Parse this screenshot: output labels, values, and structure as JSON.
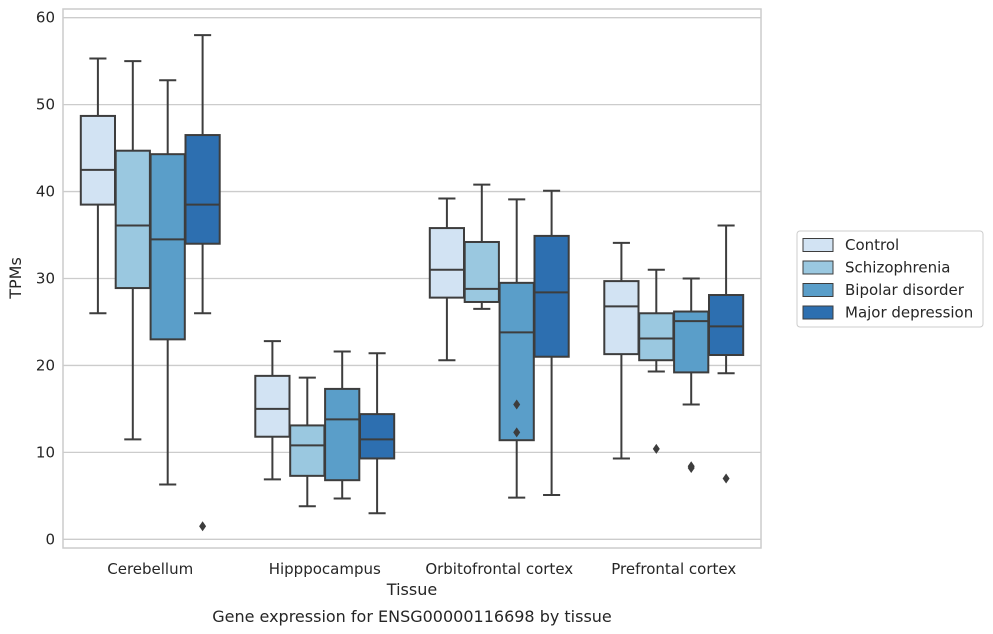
{
  "caption": "Gene expression for ENSG00000116698 by tissue",
  "chart_data": {
    "type": "box",
    "xlabel": "Tissue",
    "ylabel": "TPMs",
    "ylim": [
      -1,
      61
    ],
    "yticks": [
      0,
      10,
      20,
      30,
      40,
      50,
      60
    ],
    "grid": true,
    "legend_position": "right",
    "categories": [
      "Cerebellum",
      "Hipppocampus",
      "Orbitofrontal cortex",
      "Prefrontal cortex"
    ],
    "series": [
      {
        "name": "Control",
        "color": "#d2e3f3",
        "boxes": [
          {
            "whisker_low": 26.0,
            "q1": 38.5,
            "median": 42.5,
            "q3": 48.7,
            "whisker_high": 55.3,
            "outliers": []
          },
          {
            "whisker_low": 6.9,
            "q1": 11.8,
            "median": 15.0,
            "q3": 18.8,
            "whisker_high": 22.8,
            "outliers": []
          },
          {
            "whisker_low": 20.6,
            "q1": 27.8,
            "median": 31.0,
            "q3": 35.8,
            "whisker_high": 39.2,
            "outliers": []
          },
          {
            "whisker_low": 9.3,
            "q1": 21.3,
            "median": 26.8,
            "q3": 29.7,
            "whisker_high": 34.1,
            "outliers": []
          }
        ]
      },
      {
        "name": "Schizophrenia",
        "color": "#9ac8e0",
        "boxes": [
          {
            "whisker_low": 11.5,
            "q1": 28.9,
            "median": 36.1,
            "q3": 44.7,
            "whisker_high": 55.0,
            "outliers": []
          },
          {
            "whisker_low": 3.8,
            "q1": 7.3,
            "median": 10.8,
            "q3": 13.1,
            "whisker_high": 18.6,
            "outliers": []
          },
          {
            "whisker_low": 26.5,
            "q1": 27.3,
            "median": 28.8,
            "q3": 34.2,
            "whisker_high": 40.8,
            "outliers": []
          },
          {
            "whisker_low": 19.3,
            "q1": 20.6,
            "median": 23.1,
            "q3": 26.0,
            "whisker_high": 31.0,
            "outliers": [
              10.4
            ]
          }
        ]
      },
      {
        "name": "Bipolar disorder",
        "color": "#5a9ec9",
        "boxes": [
          {
            "whisker_low": 6.3,
            "q1": 23.0,
            "median": 34.5,
            "q3": 44.3,
            "whisker_high": 52.8,
            "outliers": []
          },
          {
            "whisker_low": 4.7,
            "q1": 6.8,
            "median": 13.8,
            "q3": 17.3,
            "whisker_high": 21.6,
            "outliers": []
          },
          {
            "whisker_low": 4.8,
            "q1": 11.4,
            "median": 23.8,
            "q3": 29.5,
            "whisker_high": 39.1,
            "outliers": [
              15.5,
              12.3
            ]
          },
          {
            "whisker_low": 15.5,
            "q1": 19.2,
            "median": 25.1,
            "q3": 26.2,
            "whisker_high": 30.0,
            "outliers": [
              8.4,
              8.2
            ]
          }
        ]
      },
      {
        "name": "Major depression",
        "color": "#2d6fb0",
        "boxes": [
          {
            "whisker_low": 26.0,
            "q1": 34.0,
            "median": 38.5,
            "q3": 46.5,
            "whisker_high": 58.0,
            "outliers": [
              1.5
            ]
          },
          {
            "whisker_low": 3.0,
            "q1": 9.3,
            "median": 11.5,
            "q3": 14.4,
            "whisker_high": 21.4,
            "outliers": []
          },
          {
            "whisker_low": 5.1,
            "q1": 21.0,
            "median": 28.4,
            "q3": 34.9,
            "whisker_high": 40.1,
            "outliers": []
          },
          {
            "whisker_low": 19.1,
            "q1": 21.2,
            "median": 24.5,
            "q3": 28.1,
            "whisker_high": 36.1,
            "outliers": [
              7.0
            ]
          }
        ]
      }
    ]
  }
}
